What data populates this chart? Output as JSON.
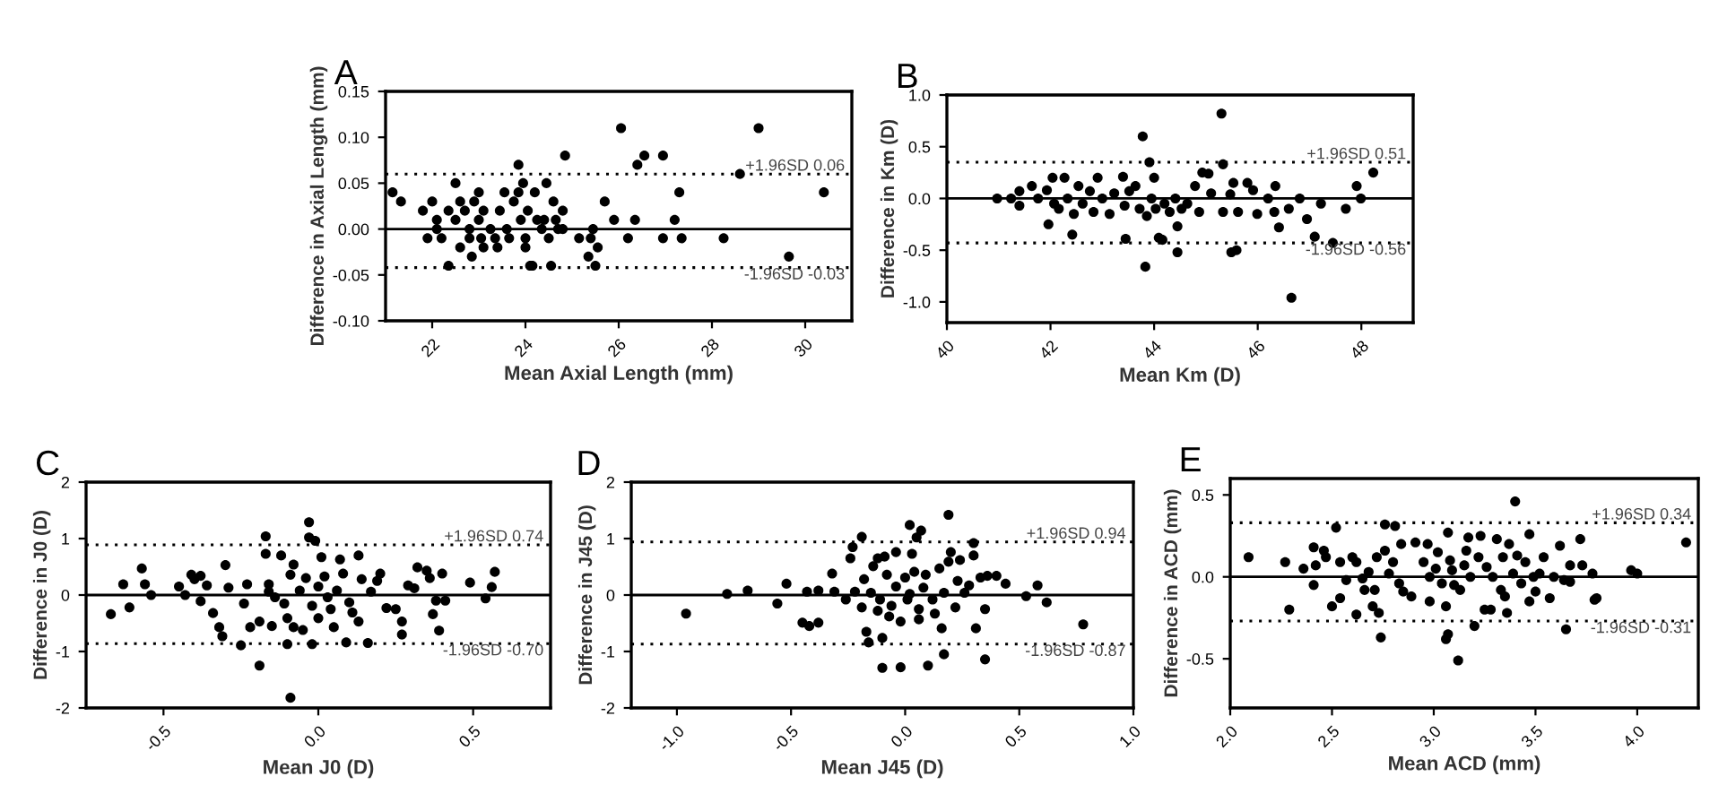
{
  "chart_data": [
    {
      "type": "scatter",
      "title": "A",
      "xlabel": "Mean Axial Length (mm)",
      "ylabel": "Difference in Axial Length (mm)",
      "marker": "circle",
      "grid": false,
      "legend": false,
      "xlim": [
        21,
        31
      ],
      "xticks": [
        22,
        24,
        26,
        28,
        30
      ],
      "ylim": [
        -0.1,
        0.15
      ],
      "yticks": [
        {
          "value": -0.1,
          "label": "-0.10"
        },
        {
          "value": -0.05,
          "label": "-0.05"
        },
        {
          "value": 0,
          "label": "0.00"
        },
        {
          "value": 0.05,
          "label": "0.05"
        },
        {
          "value": 0.1,
          "label": "0.10"
        },
        {
          "value": 0.15,
          "label": "0.15"
        }
      ],
      "ref_lines": [
        {
          "axis": "y",
          "value": 0,
          "line_style": "solid",
          "color": "#000000"
        },
        {
          "axis": "y",
          "value": 0.06,
          "label": "+1.96SD 0.06",
          "line_style": "dotted",
          "color": "#000000"
        },
        {
          "axis": "y",
          "value": -0.042,
          "label": "-1.96SD -0.03",
          "line_style": "dotted",
          "color": "#000000"
        }
      ],
      "series": [
        {
          "color": "#000000",
          "x": [
            21.15,
            21.33,
            21.8,
            22.0,
            21.9,
            22.2,
            22.1,
            22.5,
            22.35,
            22.6,
            22.5,
            22.7,
            22.6,
            22.8,
            22.85,
            22.9,
            22.8,
            23.0,
            23.0,
            23.1,
            23.1,
            23.25,
            23.35,
            23.45,
            23.55,
            23.4,
            23.6,
            23.75,
            23.85,
            23.85,
            23.95,
            23.9,
            24.0,
            24.0,
            24.05,
            24.1,
            24.15,
            24.2,
            24.25,
            24.35,
            24.45,
            24.5,
            24.55,
            24.6,
            24.65,
            24.8,
            24.85,
            24.8,
            25.15,
            25.35,
            25.45,
            25.4,
            25.5,
            25.55,
            25.7,
            25.9,
            26.05,
            26.2,
            26.35,
            26.4,
            26.55,
            26.95,
            26.95,
            27.2,
            27.3,
            27.35,
            28.25,
            28.6,
            29.0,
            29.65,
            30.4,
            22.1,
            22.35,
            23.05,
            23.65,
            24.4,
            24.7
          ],
          "values": [
            0.04,
            0.03,
            0.02,
            0.03,
            -0.01,
            -0.01,
            0.01,
            0.05,
            -0.04,
            0.03,
            0.01,
            0.02,
            -0.02,
            0,
            -0.03,
            0.03,
            -0.01,
            0.04,
            0.01,
            0.02,
            -0.02,
            0,
            -0.01,
            0.02,
            0.04,
            -0.02,
            0,
            0.03,
            0.07,
            0.04,
            0.05,
            0.01,
            -0.01,
            -0.02,
            0.02,
            -0.04,
            -0.04,
            0.04,
            0.01,
            0,
            0.05,
            -0.01,
            -0.04,
            0.03,
            0.01,
            0.02,
            0.08,
            0,
            -0.01,
            -0.03,
            0,
            -0.01,
            -0.04,
            -0.02,
            0.03,
            0.01,
            0.11,
            -0.01,
            0.01,
            0.07,
            0.08,
            0.08,
            -0.01,
            0.01,
            0.04,
            -0.01,
            -0.01,
            0.06,
            0.11,
            -0.03,
            0.04,
            0,
            0.02,
            -0.01,
            -0.01,
            0.01,
            0
          ]
        }
      ]
    },
    {
      "type": "scatter",
      "title": "B",
      "xlabel": "Mean Km (D)",
      "ylabel": "Difference in Km (D)",
      "marker": "circle",
      "grid": false,
      "legend": false,
      "xlim": [
        40,
        49
      ],
      "xticks": [
        40,
        42,
        44,
        46,
        48
      ],
      "ylim": [
        -1.2,
        1.0
      ],
      "yticks": [
        {
          "value": -1.0,
          "label": "-1.0"
        },
        {
          "value": -0.5,
          "label": "-0.5"
        },
        {
          "value": 0,
          "label": "0.0"
        },
        {
          "value": 0.5,
          "label": "0.5"
        },
        {
          "value": 1.0,
          "label": "1.0"
        }
      ],
      "ref_lines": [
        {
          "axis": "y",
          "value": 0,
          "line_style": "solid",
          "color": "#000000"
        },
        {
          "axis": "y",
          "value": 0.35,
          "label": "+1.96SD 0.51",
          "line_style": "dotted",
          "color": "#000000"
        },
        {
          "axis": "y",
          "value": -0.43,
          "label": "-1.96SD -0.56",
          "line_style": "dotted",
          "color": "#000000"
        }
      ],
      "series": [
        {
          "color": "#000000",
          "x": [
            40.97,
            41.24,
            41.4,
            41.4,
            41.64,
            41.76,
            41.93,
            41.96,
            42.04,
            42.07,
            42.16,
            42.27,
            42.33,
            42.42,
            42.45,
            42.54,
            42.62,
            42.76,
            42.83,
            42.91,
            43.0,
            43.14,
            43.23,
            43.4,
            43.43,
            43.45,
            43.52,
            43.64,
            43.72,
            43.78,
            43.83,
            43.86,
            43.91,
            43.95,
            44.0,
            44.03,
            44.09,
            44.16,
            44.2,
            44.3,
            44.41,
            44.45,
            44.45,
            44.53,
            44.64,
            44.79,
            44.87,
            44.93,
            45.05,
            45.1,
            45.3,
            45.33,
            45.33,
            45.47,
            45.49,
            45.59,
            45.53,
            45.62,
            45.8,
            45.91,
            45.99,
            46.2,
            46.34,
            46.41,
            46.32,
            46.6,
            46.65,
            46.81,
            46.95,
            47.1,
            47.22,
            47.45,
            47.7,
            47.91,
            47.99,
            48.23
          ],
          "values": [
            0,
            0,
            0.07,
            -0.07,
            0.12,
            0,
            0.08,
            -0.25,
            0.2,
            -0.05,
            -0.1,
            0.2,
            0,
            -0.35,
            -0.15,
            0.12,
            -0.05,
            0.07,
            -0.13,
            0.2,
            0,
            -0.15,
            0.05,
            0.21,
            -0.07,
            -0.39,
            0.07,
            0.12,
            -0.1,
            0.6,
            -0.66,
            -0.17,
            0.35,
            0,
            0.2,
            -0.1,
            -0.38,
            -0.4,
            -0.05,
            -0.13,
            0,
            -0.27,
            -0.52,
            -0.1,
            -0.05,
            0.12,
            -0.13,
            0.25,
            0.24,
            0.05,
            0.82,
            0.33,
            -0.13,
            0.04,
            -0.52,
            -0.5,
            0.15,
            -0.13,
            0.15,
            0.08,
            -0.15,
            0,
            0.12,
            -0.28,
            -0.13,
            -0.1,
            -0.96,
            0,
            -0.2,
            -0.37,
            -0.05,
            -0.43,
            -0.1,
            0.12,
            0,
            0.25
          ]
        }
      ]
    },
    {
      "type": "scatter",
      "title": "C",
      "xlabel": "Mean J0 (D)",
      "ylabel": "Difference in J0 (D)",
      "marker": "circle",
      "grid": false,
      "legend": false,
      "xlim": [
        -0.75,
        0.75
      ],
      "xticks": [
        {
          "value": -0.5,
          "label": "-0.5"
        },
        {
          "value": 0,
          "label": "0.0"
        },
        {
          "value": 0.5,
          "label": "0.5"
        }
      ],
      "ylim": [
        -2,
        2
      ],
      "yticks": [
        -2,
        -1,
        0,
        1,
        2
      ],
      "ref_lines": [
        {
          "axis": "y",
          "value": 0,
          "line_style": "solid",
          "color": "#000000"
        },
        {
          "axis": "y",
          "value": 0.89,
          "label": "+1.96SD 0.74",
          "line_style": "dotted",
          "color": "#000000"
        },
        {
          "axis": "y",
          "value": -0.86,
          "label": "-1.96SD -0.70",
          "line_style": "dotted",
          "color": "#000000"
        }
      ],
      "series": [
        {
          "color": "#000000",
          "x": [
            -0.67,
            -0.63,
            -0.61,
            -0.57,
            -0.56,
            -0.54,
            -0.45,
            -0.43,
            -0.41,
            -0.4,
            -0.38,
            -0.38,
            -0.36,
            -0.34,
            -0.32,
            -0.31,
            -0.3,
            -0.29,
            -0.25,
            -0.24,
            -0.23,
            -0.22,
            -0.19,
            -0.19,
            -0.17,
            -0.17,
            -0.16,
            -0.16,
            -0.15,
            -0.14,
            -0.12,
            -0.11,
            -0.1,
            -0.1,
            -0.09,
            -0.09,
            -0.08,
            -0.08,
            -0.06,
            -0.05,
            -0.04,
            -0.03,
            -0.03,
            -0.02,
            -0.02,
            -0.01,
            0.0,
            0.0,
            0.01,
            0.02,
            0.03,
            0.04,
            0.05,
            0.06,
            0.07,
            0.08,
            0.09,
            0.1,
            0.11,
            0.13,
            0.13,
            0.14,
            0.16,
            0.17,
            0.19,
            0.2,
            0.22,
            0.25,
            0.27,
            0.27,
            0.29,
            0.31,
            0.32,
            0.35,
            0.36,
            0.37,
            0.38,
            0.39,
            0.4,
            0.41,
            0.49,
            0.54,
            0.56,
            0.57
          ],
          "values": [
            -0.34,
            0.19,
            -0.22,
            0.47,
            0.19,
            0,
            0.15,
            0,
            0.36,
            0.28,
            -0.11,
            0.34,
            0.17,
            -0.32,
            -0.57,
            -0.73,
            0.53,
            0.13,
            -0.89,
            -0.15,
            0.19,
            -0.57,
            -0.47,
            -1.25,
            1.04,
            0.73,
            0.19,
            0.06,
            -0.55,
            -0.04,
            0.7,
            -0.15,
            -0.41,
            -0.87,
            -1.82,
            0.36,
            -0.57,
            0.54,
            0.08,
            -0.62,
            0.3,
            1.29,
            1.02,
            -0.19,
            -0.87,
            0.96,
            0.15,
            -0.41,
            0.67,
            0.33,
            -0.04,
            -0.25,
            -0.57,
            0.08,
            0.63,
            0.38,
            -0.84,
            -0.13,
            -0.31,
            0.7,
            -0.47,
            0.28,
            -0.85,
            0.06,
            0.25,
            0.38,
            -0.23,
            -0.25,
            -0.47,
            -0.7,
            0.17,
            0.12,
            0.49,
            0.43,
            0.3,
            -0.34,
            -0.1,
            -0.63,
            0.38,
            -0.1,
            0.22,
            -0.06,
            0.14,
            0.41
          ]
        }
      ]
    },
    {
      "type": "scatter",
      "title": "D",
      "xlabel": "Mean J45 (D)",
      "ylabel": "Difference in J45 (D)",
      "marker": "circle",
      "grid": false,
      "legend": false,
      "xlim": [
        -1.2,
        1.0
      ],
      "xticks": [
        {
          "value": -1.0,
          "label": "-1.0"
        },
        {
          "value": -0.5,
          "label": "-0.5"
        },
        {
          "value": 0,
          "label": "0.0"
        },
        {
          "value": 0.5,
          "label": "0.5"
        },
        {
          "value": 1.0,
          "label": "1.0"
        }
      ],
      "ylim": [
        -2,
        2
      ],
      "yticks": [
        -2,
        -1,
        0,
        1,
        2
      ],
      "ref_lines": [
        {
          "axis": "y",
          "value": 0,
          "line_style": "solid",
          "color": "#000000"
        },
        {
          "axis": "y",
          "value": 0.94,
          "label": "+1.96SD 0.94",
          "line_style": "dotted",
          "color": "#000000"
        },
        {
          "axis": "y",
          "value": -0.87,
          "label": "-1.96SD -0.87",
          "line_style": "dotted",
          "color": "#000000"
        }
      ],
      "series": [
        {
          "color": "#000000",
          "x": [
            -0.96,
            -0.78,
            -0.69,
            -0.56,
            -0.52,
            -0.45,
            -0.42,
            -0.43,
            -0.38,
            -0.38,
            -0.32,
            -0.31,
            -0.26,
            -0.24,
            -0.23,
            -0.22,
            -0.19,
            -0.19,
            -0.18,
            -0.17,
            -0.16,
            -0.15,
            -0.14,
            -0.12,
            -0.12,
            -0.11,
            -0.1,
            -0.1,
            -0.09,
            -0.08,
            -0.07,
            -0.06,
            -0.04,
            -0.04,
            -0.02,
            -0.02,
            0.0,
            0.01,
            0.02,
            0.02,
            0.03,
            0.04,
            0.05,
            0.06,
            0.06,
            0.07,
            0.08,
            0.09,
            0.1,
            0.12,
            0.13,
            0.15,
            0.16,
            0.17,
            0.17,
            0.19,
            0.19,
            0.2,
            0.22,
            0.23,
            0.24,
            0.26,
            0.28,
            0.3,
            0.3,
            0.31,
            0.33,
            0.35,
            0.35,
            0.36,
            0.4,
            0.44,
            0.53,
            0.58,
            0.62,
            0.78
          ],
          "values": [
            -0.33,
            0.02,
            0.08,
            -0.15,
            0.2,
            -0.49,
            -0.55,
            0.06,
            -0.49,
            0.08,
            0.38,
            0.06,
            -0.08,
            0.65,
            0.85,
            0.06,
            1.03,
            -0.22,
            0.28,
            -0.65,
            -0.84,
            0.04,
            0.51,
            -0.28,
            0.65,
            -0.08,
            -0.76,
            -1.29,
            0.68,
            0.36,
            -0.38,
            -0.19,
            0.76,
            0.15,
            -1.28,
            -0.47,
            0.31,
            -0.08,
            1.24,
            0.02,
            0.73,
            0.41,
            1.02,
            -0.25,
            -0.43,
            1.14,
            0.13,
            0.36,
            -1.25,
            -0.08,
            -0.33,
            0.47,
            -0.59,
            -1.05,
            0.04,
            0.59,
            1.42,
            0.76,
            -0.22,
            0.25,
            0.62,
            0.04,
            0.17,
            0.92,
            0.7,
            -0.59,
            0.31,
            -0.25,
            -1.14,
            0.34,
            0.34,
            0.2,
            -0.02,
            0.17,
            -0.13,
            -0.52
          ]
        }
      ]
    },
    {
      "type": "scatter",
      "title": "E",
      "xlabel": "Mean ACD (mm)",
      "ylabel": "Difference in ACD (mm)",
      "marker": "circle",
      "grid": false,
      "legend": false,
      "xlim": [
        2.0,
        4.3
      ],
      "xticks": [
        {
          "value": 2.0,
          "label": "2.0"
        },
        {
          "value": 2.5,
          "label": "2.5"
        },
        {
          "value": 3.0,
          "label": "3.0"
        },
        {
          "value": 3.5,
          "label": "3.5"
        },
        {
          "value": 4.0,
          "label": "4.0"
        }
      ],
      "ylim": [
        -0.8,
        0.6
      ],
      "yticks": [
        {
          "value": -0.5,
          "label": "-0.5"
        },
        {
          "value": 0,
          "label": "0.0"
        },
        {
          "value": 0.5,
          "label": "0.5"
        }
      ],
      "ref_lines": [
        {
          "axis": "y",
          "value": 0,
          "line_style": "solid",
          "color": "#000000"
        },
        {
          "axis": "y",
          "value": 0.33,
          "label": "+1.96SD 0.34",
          "line_style": "dotted",
          "color": "#000000"
        },
        {
          "axis": "y",
          "value": -0.27,
          "label": "-1.96SD -0.31",
          "line_style": "dotted",
          "color": "#000000"
        }
      ],
      "series": [
        {
          "color": "#000000",
          "x": [
            2.09,
            2.27,
            2.29,
            2.36,
            2.41,
            2.41,
            2.42,
            2.46,
            2.47,
            2.5,
            2.52,
            2.54,
            2.54,
            2.57,
            2.6,
            2.62,
            2.62,
            2.65,
            2.66,
            2.68,
            2.7,
            2.71,
            2.72,
            2.73,
            2.74,
            2.76,
            2.76,
            2.78,
            2.8,
            2.81,
            2.83,
            2.84,
            2.85,
            2.89,
            2.91,
            2.95,
            2.97,
            2.98,
            2.98,
            3.01,
            3.02,
            3.04,
            3.06,
            3.06,
            3.07,
            3.07,
            3.08,
            3.09,
            3.1,
            3.12,
            3.13,
            3.15,
            3.16,
            3.17,
            3.18,
            3.2,
            3.22,
            3.23,
            3.25,
            3.26,
            3.28,
            3.29,
            3.31,
            3.33,
            3.34,
            3.35,
            3.36,
            3.37,
            3.39,
            3.4,
            3.41,
            3.43,
            3.45,
            3.47,
            3.47,
            3.49,
            3.5,
            3.52,
            3.54,
            3.57,
            3.59,
            3.62,
            3.64,
            3.65,
            3.67,
            3.67,
            3.72,
            3.73,
            3.78,
            3.79,
            3.8,
            3.97,
            4.0,
            4.24
          ],
          "values": [
            0.12,
            0.09,
            -0.2,
            0.05,
            0.18,
            -0.05,
            0.07,
            0.16,
            0.12,
            -0.18,
            0.3,
            -0.13,
            0.09,
            -0.02,
            0.12,
            -0.23,
            0.09,
            -0.01,
            -0.08,
            0.03,
            -0.18,
            -0.08,
            0.12,
            -0.22,
            -0.37,
            0.16,
            0.32,
            0.02,
            0.09,
            0.31,
            -0.04,
            0.2,
            -0.09,
            -0.12,
            0.21,
            0.09,
            0.2,
            -0.15,
            0.0,
            0.05,
            0.15,
            -0.04,
            -0.18,
            -0.38,
            -0.35,
            0.27,
            0.1,
            0.04,
            -0.05,
            -0.51,
            -0.08,
            0.07,
            0.16,
            0.24,
            0.0,
            -0.3,
            0.12,
            0.25,
            -0.2,
            0.06,
            -0.2,
            0.0,
            0.23,
            -0.08,
            0.12,
            -0.12,
            -0.22,
            0.2,
            0.02,
            0.46,
            0.13,
            -0.04,
            0.09,
            -0.15,
            0.26,
            0.0,
            -0.09,
            0.02,
            0.12,
            -0.13,
            0.0,
            0.19,
            -0.02,
            -0.32,
            -0.03,
            0.07,
            0.23,
            0.07,
            0.02,
            -0.14,
            -0.13,
            0.04,
            0.02,
            0.21
          ]
        }
      ]
    }
  ]
}
